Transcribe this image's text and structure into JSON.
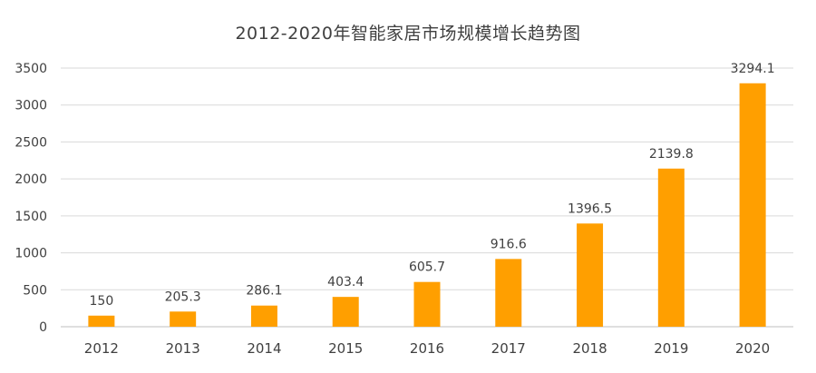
{
  "chart_data": {
    "type": "bar",
    "title": "2012-2020年智能家居市场规模增长趋势图",
    "xlabel": "",
    "ylabel": "",
    "categories": [
      "2012",
      "2013",
      "2014",
      "2015",
      "2016",
      "2017",
      "2018",
      "2019",
      "2020"
    ],
    "values": [
      150,
      205.3,
      286.1,
      403.4,
      605.7,
      916.6,
      1396.5,
      2139.8,
      3294.1
    ],
    "data_labels": [
      "150",
      "205.3",
      "286.1",
      "403.4",
      "605.7",
      "916.6",
      "1396.5",
      "2139.8",
      "3294.1"
    ],
    "ylim": [
      0,
      3500
    ],
    "yticks": [
      "0",
      "500",
      "1000",
      "1500",
      "2000",
      "2500",
      "3000",
      "3500"
    ],
    "grid": true,
    "legend": "none",
    "bar_color": "#ff9f00"
  }
}
